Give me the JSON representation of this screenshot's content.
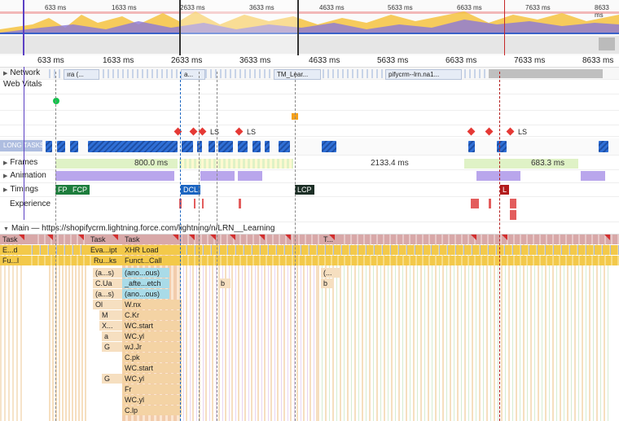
{
  "overview": {
    "ticks": [
      "633 ms",
      "1633 ms",
      "2633 ms",
      "3633 ms",
      "4633 ms",
      "5633 ms",
      "6633 ms",
      "7633 ms",
      "8633 ms"
    ]
  },
  "ruler": {
    "ticks": [
      "633 ms",
      "1633 ms",
      "2633 ms",
      "3633 ms",
      "4633 ms",
      "5633 ms",
      "6633 ms",
      "7633 ms",
      "8633 ms"
    ]
  },
  "network": {
    "label": "Network",
    "items": [
      "ıra (...",
      "a...",
      "TM_Lear...",
      "pifycrm--lrn.na1..."
    ]
  },
  "web_vitals": {
    "label": "Web Vitals",
    "ls_label": "LS",
    "long_tasks_label": "LONG TASKS"
  },
  "tracks": {
    "frames": "Frames",
    "frames_values": [
      "800.0 ms",
      "2133.4 ms",
      "683.3 ms"
    ],
    "animation": "Animation",
    "timings": "Timings",
    "timings_badges": [
      "FP",
      "FCP",
      "DCL",
      "LCP",
      "L"
    ],
    "experience": "Experience"
  },
  "main": {
    "label": "Main — https://shopifycrm.lightning.force.com/lightning/n/LRN__Learning",
    "col1": [
      "Task",
      "E...d",
      "Fu...l"
    ],
    "col2": [
      "Task",
      "Eva...ipt",
      "Ru...ks",
      "(a...s)",
      "C.Ua",
      "(a...s)",
      "Ol",
      "M",
      "X...",
      "a",
      "G",
      "",
      "G"
    ],
    "col3": [
      "Task",
      "XHR Load",
      "Funct...Call",
      "(ano...ous)",
      "_afte...etch",
      "(ano...ous)",
      "W.nx",
      "C.Kr",
      "WC.start",
      "WC.yl",
      "wJ.Jr",
      "C.pk",
      "WC.start",
      "WC.yl",
      "Fr",
      "WC.yl",
      "C.lp"
    ],
    "col4": [
      "b"
    ],
    "col5": [
      "T...",
      "(...",
      "b"
    ]
  },
  "colors": {
    "task_header": "#d8a8a8",
    "script_yellow": "#f3c94a",
    "stack_tan": "#f4d3a4",
    "stack_blue": "#a9dbe8",
    "long_task": "#2f6fd6",
    "animation": "#b9a6ec",
    "frames": "#dff2c6",
    "fp": "#1d7d3c",
    "dcl": "#1a65c1",
    "lcp": "#1c2f26",
    "l": "#b21c1c"
  }
}
